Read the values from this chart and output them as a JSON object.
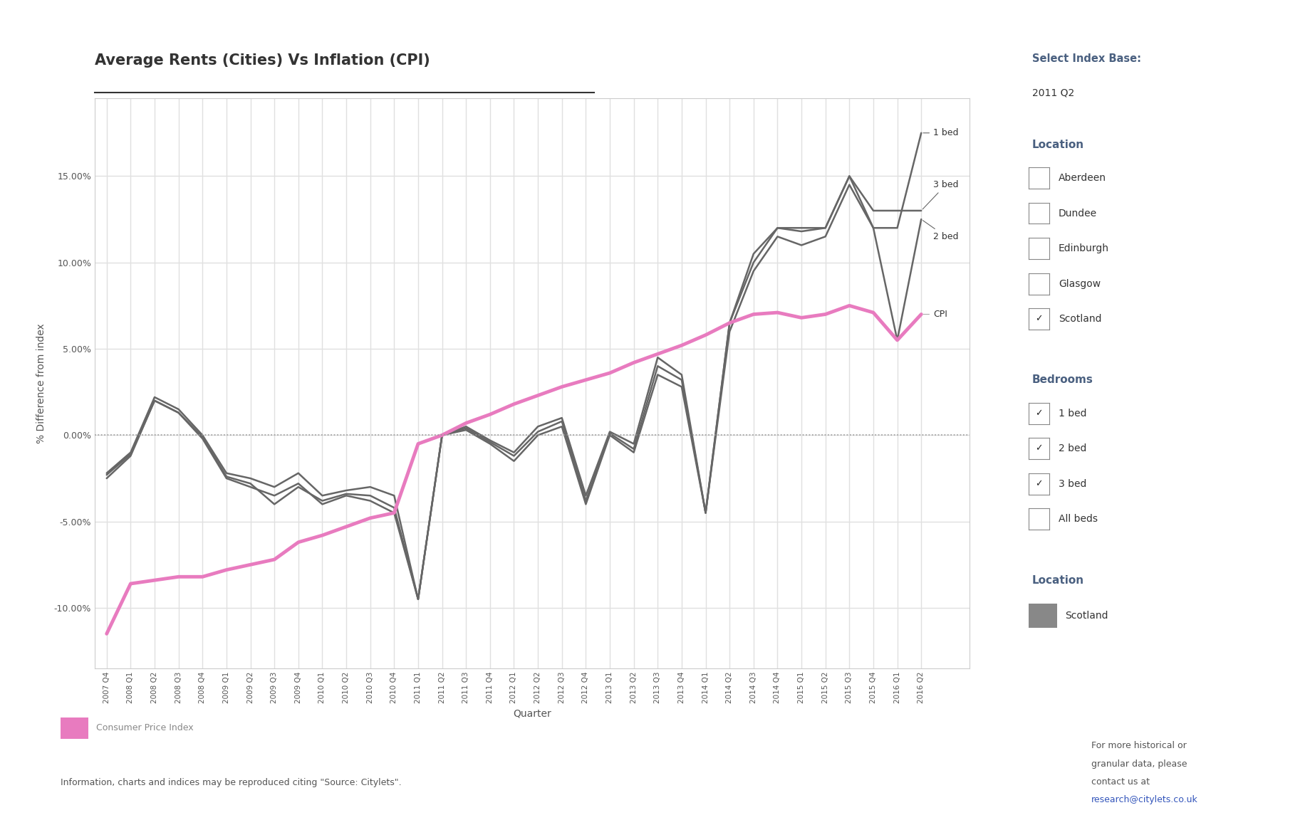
{
  "title": "Average Rents (Cities) Vs Inflation (CPI)",
  "xlabel": "Quarter",
  "ylabel": "% Difference from index",
  "background_color": "#ffffff",
  "plot_bg_color": "#ffffff",
  "grid_color": "#e0e0e0",
  "quarters": [
    "2007 Q4",
    "2008 Q1",
    "2008 Q2",
    "2008 Q3",
    "2008 Q4",
    "2009 Q1",
    "2009 Q2",
    "2009 Q3",
    "2009 Q4",
    "2010 Q1",
    "2010 Q2",
    "2010 Q3",
    "2010 Q4",
    "2011 Q1",
    "2011 Q2",
    "2011 Q3",
    "2011 Q4",
    "2012 Q1",
    "2012 Q2",
    "2012 Q3",
    "2012 Q4",
    "2013 Q1",
    "2013 Q2",
    "2013 Q3",
    "2013 Q4",
    "2014 Q1",
    "2014 Q2",
    "2014 Q3",
    "2014 Q4",
    "2015 Q1",
    "2015 Q2",
    "2015 Q3",
    "2015 Q4",
    "2016 Q1",
    "2016 Q2"
  ],
  "cpi": [
    -11.5,
    -8.6,
    -8.4,
    -8.2,
    -8.2,
    -7.8,
    -7.5,
    -7.2,
    -6.2,
    -5.8,
    -5.3,
    -4.8,
    -4.5,
    -0.5,
    0.0,
    0.7,
    1.2,
    1.8,
    2.3,
    2.8,
    3.2,
    3.6,
    4.2,
    4.7,
    5.2,
    5.8,
    6.5,
    7.0,
    7.1,
    6.8,
    7.0,
    7.5,
    7.1,
    5.5,
    7.0
  ],
  "bed1": [
    -2.2,
    -1.0,
    2.2,
    1.5,
    0.0,
    -2.2,
    -2.5,
    -3.0,
    -2.2,
    -3.5,
    -3.2,
    -3.0,
    -3.5,
    -9.5,
    0.0,
    0.5,
    -0.3,
    -1.0,
    0.5,
    1.0,
    -3.5,
    0.2,
    -0.5,
    4.5,
    3.5,
    -4.5,
    6.5,
    10.5,
    12.0,
    12.0,
    12.0,
    15.0,
    12.0,
    12.0,
    17.5
  ],
  "bed2": [
    -2.5,
    -1.2,
    2.0,
    1.3,
    -0.2,
    -2.5,
    -3.0,
    -3.5,
    -2.8,
    -4.0,
    -3.5,
    -3.8,
    -4.5,
    -9.5,
    0.0,
    0.3,
    -0.5,
    -1.5,
    0.0,
    0.5,
    -4.0,
    0.0,
    -1.0,
    3.5,
    2.8,
    -4.5,
    6.0,
    9.5,
    11.5,
    11.0,
    11.5,
    14.5,
    12.0,
    5.5,
    12.5
  ],
  "bed3": [
    -2.3,
    -1.1,
    2.0,
    1.3,
    -0.1,
    -2.4,
    -2.8,
    -4.0,
    -3.0,
    -3.8,
    -3.4,
    -3.5,
    -4.2,
    -9.5,
    0.0,
    0.4,
    -0.4,
    -1.2,
    0.2,
    0.8,
    -3.8,
    0.1,
    -0.8,
    4.0,
    3.2,
    -4.5,
    6.5,
    10.0,
    12.0,
    11.8,
    12.0,
    15.0,
    13.0,
    13.0,
    13.0
  ],
  "line_color_rent": "#666666",
  "line_color_cpi": "#e87bbf",
  "ylim": [
    -13.5,
    19.5
  ],
  "yticks": [
    -10.0,
    -5.0,
    0.0,
    5.0,
    10.0,
    15.0
  ],
  "select_index_base_label": "Select Index Base:",
  "select_index_base_value": "2011 Q2",
  "location_label": "Location",
  "locations": [
    "Aberdeen",
    "Dundee",
    "Edinburgh",
    "Glasgow",
    "Scotland"
  ],
  "locations_checked": [
    false,
    false,
    false,
    false,
    true
  ],
  "bedrooms_label": "Bedrooms",
  "bedrooms": [
    "1 bed",
    "2 bed",
    "3 bed",
    "All beds"
  ],
  "bedrooms_checked": [
    true,
    true,
    true,
    false
  ],
  "location_legend_label": "Location",
  "location_legend_value": "Scotland",
  "bottom_legend_label": "Consumer Price Index",
  "footer_left": "Information, charts and indices may be reproduced citing \"Source: Citylets\".",
  "footer_right_line1": "For more historical or",
  "footer_right_line2": "granular data, please",
  "footer_right_line3": "contact us at",
  "footer_right_email": "research@citylets.co.uk",
  "title_color": "#333333",
  "label_color": "#555555",
  "tick_color": "#555555",
  "sidebar_header_color": "#4a6080",
  "sidebar_text_color": "#333333"
}
